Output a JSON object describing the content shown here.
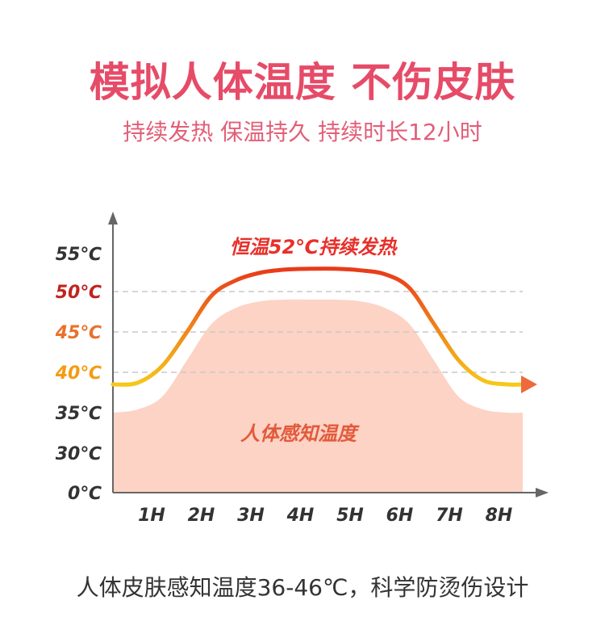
{
  "header": {
    "title": "模拟人体温度  不伤皮肤",
    "subtitle": "持续发热  保温持久  持续时长12小时"
  },
  "footer": {
    "text": "人体皮肤感知温度36-46℃，科学防烫伤设计"
  },
  "chart_data": {
    "type": "area",
    "x_ticks": [
      "1H",
      "2H",
      "3H",
      "4H",
      "5H",
      "6H",
      "7H",
      "8H"
    ],
    "y_ticks": [
      {
        "value": 0,
        "label": "0℃",
        "color": "#333333"
      },
      {
        "value": 30,
        "label": "30℃",
        "color": "#333333"
      },
      {
        "value": 35,
        "label": "35℃",
        "color": "#333333"
      },
      {
        "value": 40,
        "label": "40℃",
        "color": "#f39c12"
      },
      {
        "value": 45,
        "label": "45℃",
        "color": "#e8722a"
      },
      {
        "value": 50,
        "label": "50℃",
        "color": "#c0241f"
      },
      {
        "value": 55,
        "label": "55℃",
        "color": "#333333"
      }
    ],
    "gridlines": [
      40,
      45,
      50
    ],
    "series": [
      {
        "name": "恒温52℃持续发热",
        "kind": "line",
        "x": [
          0,
          0.5,
          1,
          1.5,
          2,
          2.5,
          3,
          3.5,
          4,
          4.5,
          5,
          5.5,
          6,
          6.5,
          7,
          7.5,
          8,
          8.3
        ],
        "y": [
          38.5,
          38.7,
          40.8,
          45,
          49.5,
          51.5,
          52.5,
          52.9,
          53,
          53,
          52.8,
          52.3,
          50.5,
          46,
          41.5,
          39,
          38.5,
          38.5
        ],
        "gradient": [
          "#f6c81a",
          "#e83a1a"
        ],
        "arrow_color": "#ee6a3c"
      },
      {
        "name": "人体感知温度",
        "kind": "area",
        "x": [
          0,
          0.5,
          1,
          1.5,
          2,
          2.5,
          3,
          3.5,
          4,
          4.5,
          5,
          5.5,
          6,
          6.5,
          7,
          7.5,
          8,
          8.3
        ],
        "y": [
          35,
          35.4,
          37,
          41.5,
          46,
          48,
          48.8,
          49,
          49,
          49,
          48.8,
          48,
          46,
          41.5,
          37,
          35.4,
          35,
          35
        ],
        "color": "#fcd3c4"
      }
    ],
    "annotations": [
      {
        "text": "恒温52℃持续发热",
        "color": "#e8302a"
      },
      {
        "text": "人体感知温度",
        "color": "#e25a3c"
      }
    ]
  }
}
